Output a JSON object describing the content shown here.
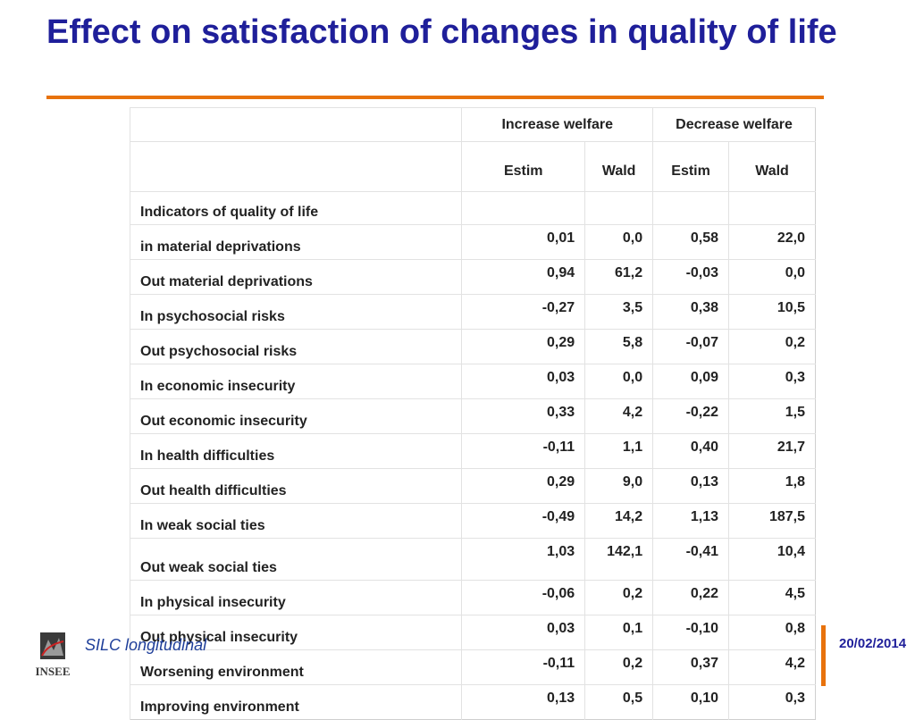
{
  "slide": {
    "title": "Effect on satisfaction of changes in quality of life"
  },
  "table": {
    "group_headers": [
      "Increase welfare",
      "Decrease welfare"
    ],
    "col_headers": [
      "Estim",
      "Wald",
      "Estim",
      "Wald"
    ],
    "section_label": "Indicators of quality of life",
    "rows": [
      {
        "label": "in material deprivations",
        "values": [
          "0,01",
          "0,0",
          "0,58",
          "22,0"
        ]
      },
      {
        "label": "Out material deprivations",
        "values": [
          "0,94",
          "61,2",
          "-0,03",
          "0,0"
        ]
      },
      {
        "label": "In psychosocial risks",
        "values": [
          "-0,27",
          "3,5",
          "0,38",
          "10,5"
        ]
      },
      {
        "label": "Out psychosocial risks",
        "values": [
          "0,29",
          "5,8",
          "-0,07",
          "0,2"
        ]
      },
      {
        "label": "In economic insecurity",
        "values": [
          "0,03",
          "0,0",
          "0,09",
          "0,3"
        ]
      },
      {
        "label": "Out economic insecurity",
        "values": [
          "0,33",
          "4,2",
          "-0,22",
          "1,5"
        ]
      },
      {
        "label": "In health difficulties",
        "values": [
          "-0,11",
          "1,1",
          "0,40",
          "21,7"
        ]
      },
      {
        "label": "Out health difficulties",
        "values": [
          "0,29",
          "9,0",
          "0,13",
          "1,8"
        ]
      },
      {
        "label": "In weak social ties",
        "values": [
          "-0,49",
          "14,2",
          "1,13",
          "187,5"
        ]
      },
      {
        "label": "Out weak social ties",
        "values": [
          "1,03",
          "142,1",
          "-0,41",
          "10,4"
        ]
      },
      {
        "label": "In physical insecurity",
        "values": [
          "-0,06",
          "0,2",
          "0,22",
          "4,5"
        ]
      },
      {
        "label": "Out physical insecurity",
        "values": [
          "0,03",
          "0,1",
          "-0,10",
          "0,8"
        ]
      },
      {
        "label": "Worsening environment",
        "values": [
          "-0,11",
          "0,2",
          "0,37",
          "4,2"
        ]
      },
      {
        "label": "Improving environment",
        "values": [
          "0,13",
          "0,5",
          "0,10",
          "0,3"
        ]
      }
    ]
  },
  "footer": {
    "logo_text": "INSEE",
    "source": "SILC longitudinal",
    "date": "20/02/2014"
  },
  "colors": {
    "title": "#1f1f9a",
    "accent": "#e8720c",
    "footer_text": "#1f3f9a"
  }
}
